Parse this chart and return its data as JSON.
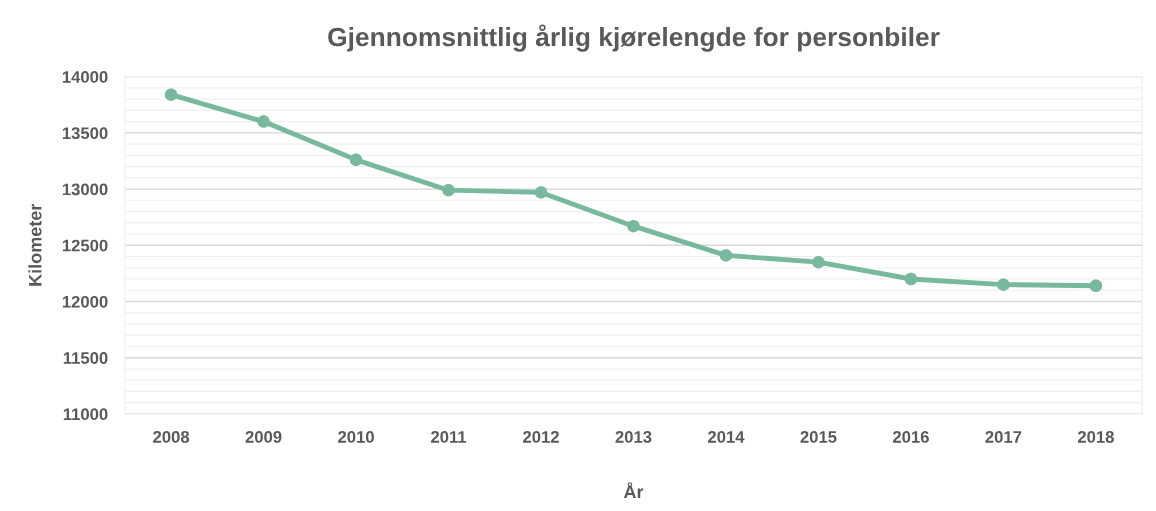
{
  "chart_data": {
    "type": "line",
    "title": "Gjennomsnittlig årlig kjørelengde for personbiler",
    "xlabel": "År",
    "ylabel": "Kilometer",
    "categories": [
      "2008",
      "2009",
      "2010",
      "2011",
      "2012",
      "2013",
      "2014",
      "2015",
      "2016",
      "2017",
      "2018"
    ],
    "series": [
      {
        "color": "#78b89c",
        "values": [
          13840,
          13600,
          13260,
          12990,
          12970,
          12670,
          12410,
          12350,
          12200,
          12150,
          12140
        ]
      }
    ],
    "ylim": [
      11000,
      14000
    ],
    "yticks": [
      11000,
      11500,
      12000,
      12500,
      13000,
      13500,
      14000
    ],
    "grid": "y",
    "marker": "circle",
    "line_style": "solid"
  }
}
